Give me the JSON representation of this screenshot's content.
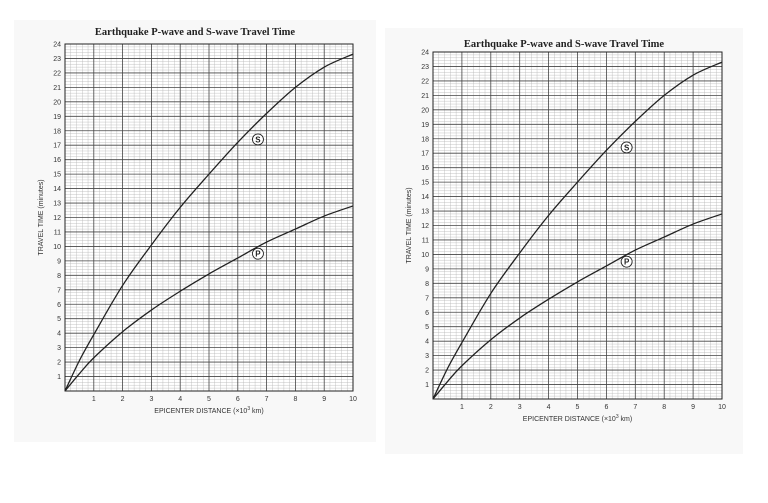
{
  "chart_data": [
    {
      "type": "line",
      "title": "Earthquake P-wave and S-wave Travel Time",
      "xlabel": "EPICENTER DISTANCE (×10",
      "xlabel_sup": "3",
      "xlabel_unit": " km)",
      "ylabel": "TRAVEL TIME (minutes)",
      "xlim": [
        0,
        10
      ],
      "ylim": [
        0,
        24
      ],
      "x_ticks": [
        "1",
        "2",
        "3",
        "4",
        "5",
        "6",
        "7",
        "8",
        "9",
        "10"
      ],
      "y_ticks": [
        "1",
        "2",
        "3",
        "4",
        "5",
        "6",
        "7",
        "8",
        "9",
        "10",
        "11",
        "12",
        "13",
        "14",
        "15",
        "16",
        "17",
        "18",
        "19",
        "20",
        "21",
        "22",
        "23",
        "24"
      ],
      "grid": true,
      "series": [
        {
          "name": "S",
          "color": "#222222",
          "x": [
            0,
            0.5,
            1,
            2,
            3,
            4,
            5,
            6,
            7,
            8,
            9,
            10
          ],
          "y": [
            0,
            2.1,
            3.9,
            7.3,
            10.1,
            12.7,
            15.0,
            17.2,
            19.2,
            21.0,
            22.4,
            23.3
          ]
        },
        {
          "name": "P",
          "color": "#222222",
          "x": [
            0,
            0.5,
            1,
            2,
            3,
            4,
            5,
            6,
            7,
            8,
            9,
            10
          ],
          "y": [
            0,
            1.2,
            2.3,
            4.1,
            5.6,
            6.9,
            8.1,
            9.2,
            10.3,
            11.2,
            12.1,
            12.8
          ]
        }
      ],
      "markers": [
        {
          "label": "S",
          "x": 6.7,
          "y": 17.4
        },
        {
          "label": "P",
          "x": 6.7,
          "y": 9.5
        }
      ]
    },
    {
      "type": "line",
      "title": "Earthquake P-wave and S-wave Travel Time",
      "xlabel": "EPICENTER DISTANCE (×10",
      "xlabel_sup": "3",
      "xlabel_unit": " km)",
      "ylabel": "TRAVEL TIME (minutes)",
      "xlim": [
        0,
        10
      ],
      "ylim": [
        0,
        24
      ],
      "x_ticks": [
        "1",
        "2",
        "3",
        "4",
        "5",
        "6",
        "7",
        "8",
        "9",
        "10"
      ],
      "y_ticks": [
        "1",
        "2",
        "3",
        "4",
        "5",
        "6",
        "7",
        "8",
        "9",
        "10",
        "11",
        "12",
        "13",
        "14",
        "15",
        "16",
        "17",
        "18",
        "19",
        "20",
        "21",
        "22",
        "23",
        "24"
      ],
      "grid": true,
      "series": [
        {
          "name": "S",
          "color": "#222222",
          "x": [
            0,
            0.5,
            1,
            2,
            3,
            4,
            5,
            6,
            7,
            8,
            9,
            10
          ],
          "y": [
            0,
            2.1,
            3.9,
            7.3,
            10.1,
            12.7,
            15.0,
            17.2,
            19.2,
            21.0,
            22.4,
            23.3
          ]
        },
        {
          "name": "P",
          "color": "#222222",
          "x": [
            0,
            0.5,
            1,
            2,
            3,
            4,
            5,
            6,
            7,
            8,
            9,
            10
          ],
          "y": [
            0,
            1.2,
            2.3,
            4.1,
            5.6,
            6.9,
            8.1,
            9.2,
            10.3,
            11.2,
            12.1,
            12.8
          ]
        }
      ],
      "markers": [
        {
          "label": "S",
          "x": 6.7,
          "y": 17.4
        },
        {
          "label": "P",
          "x": 6.7,
          "y": 9.5
        }
      ]
    }
  ]
}
